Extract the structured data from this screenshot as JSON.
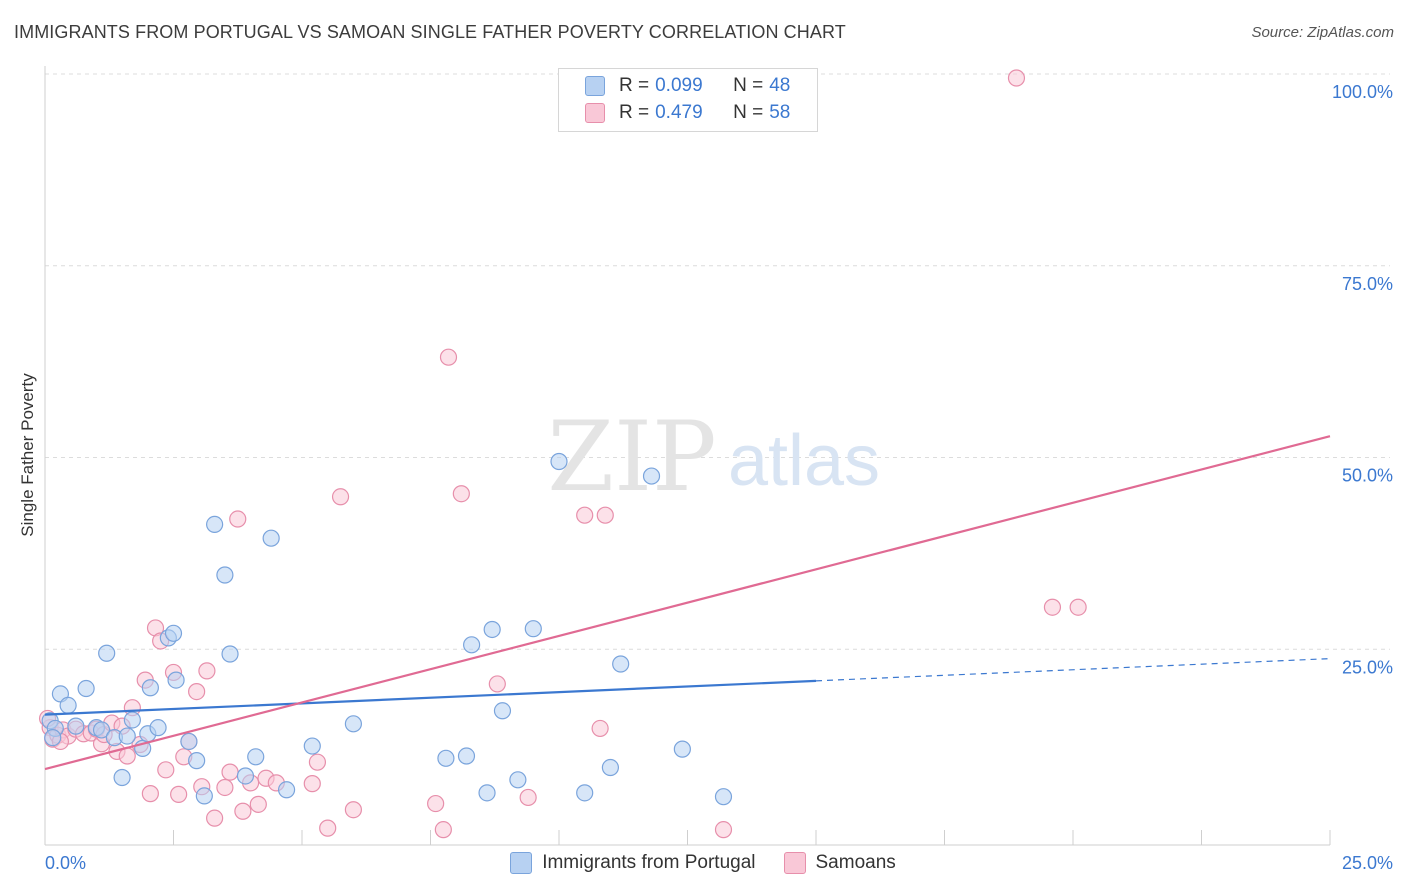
{
  "title": "IMMIGRANTS FROM PORTUGAL VS SAMOAN SINGLE FATHER POVERTY CORRELATION CHART",
  "source": "Source: ZipAtlas.com",
  "watermark": {
    "zip": "ZIP",
    "atlas": "atlas"
  },
  "legend": {
    "r_label": "R =",
    "n_label": "N =",
    "rows": [
      {
        "r": "0.099",
        "n": "48",
        "color": "#b7d1f2",
        "border": "#7aa4dc"
      },
      {
        "r": "0.479",
        "n": "58",
        "color": "#f9c8d7",
        "border": "#e78fab"
      }
    ]
  },
  "bottom_legend": [
    {
      "label": "Immigrants from Portugal",
      "color": "#b7d1f2",
      "border": "#7aa4dc"
    },
    {
      "label": "Samoans",
      "color": "#f9c8d7",
      "border": "#e78fab"
    }
  ],
  "chart_data": {
    "type": "scatter",
    "title": "IMMIGRANTS FROM PORTUGAL VS SAMOAN SINGLE FATHER POVERTY CORRELATION CHART",
    "xlabel": "",
    "ylabel": "Single Father Poverty",
    "xlim": [
      0,
      25
    ],
    "ylim": [
      0,
      100
    ],
    "x_tick_labels": [
      "0.0%",
      "25.0%"
    ],
    "y_tick_labels": [
      "25.0%",
      "50.0%",
      "75.0%",
      "100.0%"
    ],
    "y_ticks": [
      25,
      50,
      75,
      100
    ],
    "grid": true,
    "legend_position": "top-center",
    "series": [
      {
        "name": "Immigrants from Portugal",
        "color": "#3b78d0",
        "fill": "#b7d1f2",
        "trend": {
          "x": [
            0,
            15
          ],
          "y": [
            17.0,
            21.4
          ],
          "dashed_to": [
            25,
            24.3
          ]
        },
        "points": [
          [
            0.1,
            16.2
          ],
          [
            0.2,
            15.2
          ],
          [
            0.3,
            19.7
          ],
          [
            0.45,
            18.2
          ],
          [
            0.6,
            15.5
          ],
          [
            0.8,
            20.4
          ],
          [
            1.0,
            15.3
          ],
          [
            1.1,
            15.0
          ],
          [
            1.2,
            25.0
          ],
          [
            1.35,
            14.0
          ],
          [
            1.5,
            8.8
          ],
          [
            1.6,
            14.2
          ],
          [
            1.7,
            16.3
          ],
          [
            1.9,
            12.6
          ],
          [
            2.0,
            14.5
          ],
          [
            2.05,
            20.5
          ],
          [
            2.2,
            15.3
          ],
          [
            2.4,
            27.0
          ],
          [
            2.5,
            27.6
          ],
          [
            2.55,
            21.5
          ],
          [
            2.8,
            13.5
          ],
          [
            2.95,
            11.0
          ],
          [
            3.1,
            6.4
          ],
          [
            3.3,
            41.8
          ],
          [
            3.5,
            35.2
          ],
          [
            3.6,
            24.9
          ],
          [
            3.9,
            9.0
          ],
          [
            4.1,
            11.5
          ],
          [
            4.4,
            40.0
          ],
          [
            4.7,
            7.2
          ],
          [
            5.2,
            12.9
          ],
          [
            6.0,
            15.8
          ],
          [
            7.8,
            11.3
          ],
          [
            8.2,
            11.6
          ],
          [
            8.3,
            26.1
          ],
          [
            8.6,
            6.8
          ],
          [
            8.7,
            28.1
          ],
          [
            8.9,
            17.5
          ],
          [
            9.2,
            8.5
          ],
          [
            9.5,
            28.2
          ],
          [
            10.0,
            50.0
          ],
          [
            10.5,
            6.8
          ],
          [
            11.0,
            10.1
          ],
          [
            11.2,
            23.6
          ],
          [
            11.8,
            48.1
          ],
          [
            12.4,
            12.5
          ],
          [
            13.2,
            6.3
          ],
          [
            0.15,
            14.0
          ]
        ]
      },
      {
        "name": "Samoans",
        "color": "#e06a93",
        "fill": "#f9c8d7",
        "trend": {
          "x": [
            0,
            25
          ],
          "y": [
            9.9,
            53.3
          ]
        },
        "points": [
          [
            0.1,
            15.3
          ],
          [
            0.15,
            13.8
          ],
          [
            0.25,
            14.3
          ],
          [
            0.35,
            15.0
          ],
          [
            0.45,
            14.2
          ],
          [
            0.6,
            15.1
          ],
          [
            0.75,
            14.5
          ],
          [
            0.9,
            14.6
          ],
          [
            1.0,
            15.1
          ],
          [
            1.1,
            13.2
          ],
          [
            1.15,
            14.4
          ],
          [
            1.3,
            15.9
          ],
          [
            1.4,
            12.2
          ],
          [
            1.5,
            15.5
          ],
          [
            1.6,
            11.6
          ],
          [
            1.7,
            17.9
          ],
          [
            1.85,
            13.1
          ],
          [
            1.95,
            21.5
          ],
          [
            2.05,
            6.7
          ],
          [
            2.15,
            28.3
          ],
          [
            2.25,
            26.6
          ],
          [
            2.35,
            9.8
          ],
          [
            2.5,
            22.5
          ],
          [
            2.6,
            6.6
          ],
          [
            2.7,
            11.5
          ],
          [
            2.8,
            13.5
          ],
          [
            2.95,
            20.0
          ],
          [
            3.05,
            7.6
          ],
          [
            3.15,
            22.7
          ],
          [
            3.3,
            3.5
          ],
          [
            3.5,
            7.5
          ],
          [
            3.6,
            9.5
          ],
          [
            3.75,
            42.5
          ],
          [
            3.85,
            4.4
          ],
          [
            4.0,
            8.1
          ],
          [
            4.15,
            5.3
          ],
          [
            4.3,
            8.7
          ],
          [
            4.5,
            8.1
          ],
          [
            5.2,
            8.0
          ],
          [
            5.3,
            10.8
          ],
          [
            5.5,
            2.2
          ],
          [
            5.75,
            45.4
          ],
          [
            6.0,
            4.6
          ],
          [
            7.6,
            5.4
          ],
          [
            7.75,
            2.0
          ],
          [
            7.85,
            63.6
          ],
          [
            8.1,
            45.8
          ],
          [
            8.8,
            21.0
          ],
          [
            9.4,
            6.2
          ],
          [
            10.5,
            43.0
          ],
          [
            10.8,
            15.2
          ],
          [
            10.9,
            43.0
          ],
          [
            13.2,
            2.0
          ],
          [
            18.9,
            100.0
          ],
          [
            19.6,
            31.0
          ],
          [
            20.1,
            31.0
          ],
          [
            0.05,
            16.5
          ],
          [
            0.3,
            13.5
          ]
        ]
      }
    ]
  }
}
